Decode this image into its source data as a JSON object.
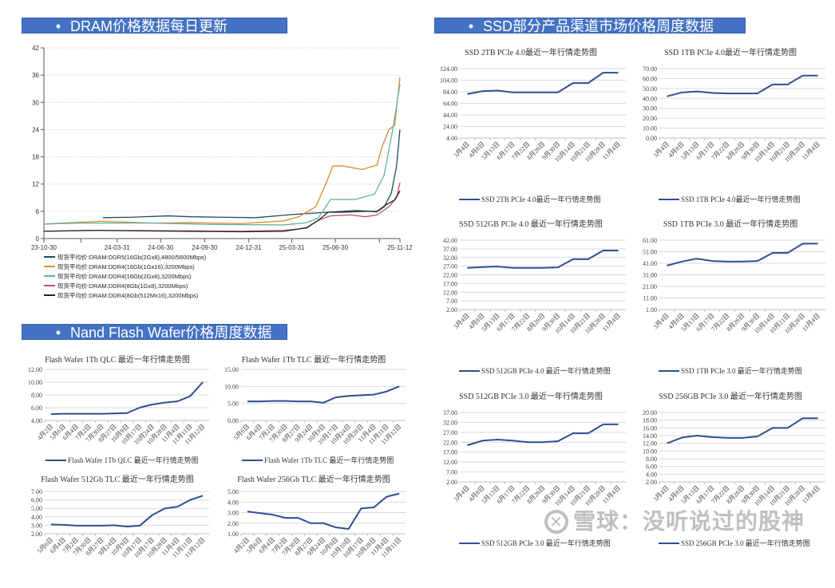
{
  "headers": {
    "dram": "DRAM价格数据每日更新",
    "ssd": "SSD部分产品渠道市场价格周度数据",
    "nand": "Nand Flash Wafer价格周度数据",
    "bullet": "•"
  },
  "watermark": {
    "logo": "✕",
    "text": "雪球：没听说过的股神"
  },
  "chart_data": [
    {
      "id": "dram",
      "type": "line",
      "title": "",
      "ylim": [
        0,
        42
      ],
      "yticks": [
        "0",
        "6",
        "12",
        "18",
        "24",
        "30",
        "36",
        "42"
      ],
      "xlim": [
        "2023-10-30",
        "2025-11-12"
      ],
      "xticks": [
        {
          "label": "23-10-30",
          "date": "2023-10-30"
        },
        {
          "label": "",
          "date": "2024-01-15"
        },
        {
          "label": "24-03-31",
          "date": "2024-03-31"
        },
        {
          "label": "24-06-30",
          "date": "2024-06-30"
        },
        {
          "label": "24-09-30",
          "date": "2024-09-30"
        },
        {
          "label": "24-12-31",
          "date": "2024-12-31"
        },
        {
          "label": "25-03-31",
          "date": "2025-03-31"
        },
        {
          "label": "25-06-30",
          "date": "2025-06-30"
        },
        {
          "label": "",
          "date": "2025-09-30"
        },
        {
          "label": "25-11-12",
          "date": "2025-11-12"
        }
      ],
      "grid": true,
      "legend": "bottom",
      "series": [
        {
          "name": "现货平均价:DRAM:DDR5(16Gb(2Gx8),4800/5600Mbps)",
          "color": "#1f4e5f",
          "points": [
            [
              "2024-03-01",
              4.6
            ],
            [
              "2024-05-01",
              4.7
            ],
            [
              "2024-07-15",
              5.0
            ],
            [
              "2024-09-01",
              4.8
            ],
            [
              "2024-11-01",
              4.7
            ],
            [
              "2025-01-15",
              4.6
            ],
            [
              "2025-04-01",
              5.3
            ],
            [
              "2025-06-15",
              5.8
            ],
            [
              "2025-07-15",
              6.0
            ],
            [
              "2025-08-10",
              6.2
            ],
            [
              "2025-09-25",
              5.9
            ],
            [
              "2025-10-10",
              7.0
            ],
            [
              "2025-10-25",
              10.0
            ],
            [
              "2025-11-05",
              16.0
            ],
            [
              "2025-11-12",
              24.0
            ]
          ]
        },
        {
          "name": "现货平均价:DRAM:DDR4(16Gb(1Gx16),3200Mbps)",
          "color": "#d98c2b",
          "points": [
            [
              "2023-10-30",
              3.2
            ],
            [
              "2024-01-15",
              3.6
            ],
            [
              "2024-03-01",
              3.8
            ],
            [
              "2024-06-15",
              3.4
            ],
            [
              "2024-09-01",
              3.5
            ],
            [
              "2024-12-15",
              3.3
            ],
            [
              "2025-03-15",
              3.9
            ],
            [
              "2025-04-15",
              4.8
            ],
            [
              "2025-05-20",
              7.0
            ],
            [
              "2025-06-10",
              12.0
            ],
            [
              "2025-06-25",
              16.0
            ],
            [
              "2025-07-15",
              16.0
            ],
            [
              "2025-08-25",
              15.2
            ],
            [
              "2025-09-25",
              16.2
            ],
            [
              "2025-10-05",
              20.0
            ],
            [
              "2025-10-20",
              24.0
            ],
            [
              "2025-11-01",
              25.0
            ],
            [
              "2025-11-12",
              35.5
            ]
          ]
        },
        {
          "name": "现货平均价:DRAM:DDR4(16Gb(2Gx8),3200Mbps)",
          "color": "#5fb3a6",
          "points": [
            [
              "2023-10-30",
              3.2
            ],
            [
              "2024-01-15",
              3.4
            ],
            [
              "2024-06-15",
              3.4
            ],
            [
              "2024-10-15",
              3.1
            ],
            [
              "2025-03-15",
              3.0
            ],
            [
              "2025-04-30",
              3.5
            ],
            [
              "2025-05-25",
              4.5
            ],
            [
              "2025-06-20",
              8.6
            ],
            [
              "2025-08-10",
              8.6
            ],
            [
              "2025-09-20",
              9.8
            ],
            [
              "2025-10-10",
              14.0
            ],
            [
              "2025-10-28",
              24.0
            ],
            [
              "2025-11-12",
              34.0
            ]
          ]
        },
        {
          "name": "现货平均价:DRAM:DDR4(8Gb(1Gx8),3200Mbps)",
          "color": "#c0506a",
          "points": [
            [
              "2023-10-30",
              1.6
            ],
            [
              "2024-03-01",
              1.8
            ],
            [
              "2024-12-15",
              1.6
            ],
            [
              "2025-03-15",
              1.8
            ],
            [
              "2025-05-01",
              2.3
            ],
            [
              "2025-05-25",
              4.0
            ],
            [
              "2025-06-20",
              5.0
            ],
            [
              "2025-08-01",
              5.2
            ],
            [
              "2025-09-01",
              4.8
            ],
            [
              "2025-09-25",
              5.2
            ],
            [
              "2025-10-20",
              7.0
            ],
            [
              "2025-11-05",
              9.0
            ],
            [
              "2025-11-12",
              12.3
            ]
          ]
        },
        {
          "name": "现货平均价:DRAM:DDR4(8Gb(512Mx16),3200Mbps)",
          "color": "#222222",
          "points": [
            [
              "2023-10-30",
              1.6
            ],
            [
              "2024-02-01",
              1.8
            ],
            [
              "2024-12-15",
              1.5
            ],
            [
              "2025-03-15",
              1.6
            ],
            [
              "2025-05-01",
              2.4
            ],
            [
              "2025-05-25",
              4.0
            ],
            [
              "2025-06-15",
              5.8
            ],
            [
              "2025-07-15",
              5.8
            ],
            [
              "2025-09-01",
              6.0
            ],
            [
              "2025-09-25",
              6.0
            ],
            [
              "2025-10-15",
              7.5
            ],
            [
              "2025-11-01",
              8.5
            ],
            [
              "2025-11-12",
              10.5
            ]
          ]
        }
      ]
    },
    {
      "id": "ssd1",
      "type": "line",
      "title": "SSD 2TB PCIe 4.0最近一年行情走势图",
      "legend_label": "SSD 2TB PCIe 4.0最近一年行情走势图",
      "color": "#2e4f94",
      "ylim": [
        4,
        124
      ],
      "yticks": [
        "4.00",
        "24.00",
        "44.00",
        "64.00",
        "84.00",
        "104.00",
        "124.00"
      ],
      "categories": [
        "3月4日",
        "4月8日",
        "5月13日",
        "6月17日",
        "7月22日",
        "8月26日",
        "9月30日",
        "10月14日",
        "10月21日",
        "10月28日",
        "11月4日"
      ],
      "values": [
        80,
        85,
        86,
        83,
        83,
        83,
        83,
        99,
        99,
        117,
        117
      ]
    },
    {
      "id": "ssd2",
      "type": "line",
      "title": "SSD 1TB PCIe 4.0最近一年行情走势图",
      "legend_label": "SSD 1TB PCIe 4.0最近一年行情走势图",
      "color": "#2e4f94",
      "ylim": [
        0,
        70
      ],
      "yticks": [
        "0.00",
        "10.00",
        "20.00",
        "30.00",
        "40.00",
        "50.00",
        "60.00",
        "70.00"
      ],
      "categories": [
        "3月4日",
        "4月8日",
        "5月13日",
        "6月17日",
        "7月22日",
        "8月26日",
        "9月30日",
        "10月14日",
        "10月21日",
        "10月28日",
        "11月4日"
      ],
      "values": [
        42,
        46,
        47,
        45.5,
        45,
        45,
        45,
        54,
        54,
        63,
        63
      ]
    },
    {
      "id": "ssd3",
      "type": "line",
      "title": "SSD 512GB PCIe 4.0 最近一年行情走势图",
      "legend_label": "SSD 512GB PCIe 4.0 最近一年行情走势图",
      "color": "#2e4f94",
      "ylim": [
        2,
        42
      ],
      "yticks": [
        "2.00",
        "7.00",
        "12.00",
        "17.00",
        "22.00",
        "27.00",
        "32.00",
        "37.00",
        "42.00"
      ],
      "categories": [
        "3月4日",
        "4月8日",
        "5月13日",
        "6月17日",
        "7月22日",
        "8月26日",
        "9月30日",
        "10月14日",
        "10月21日",
        "10月28日",
        "11月4日"
      ],
      "values": [
        26,
        26.5,
        26.8,
        26,
        26,
        26,
        26.3,
        31,
        31,
        36,
        36
      ]
    },
    {
      "id": "ssd4",
      "type": "line",
      "title": "SSD 1TB PCIe 3.0 最近一年行情走势图",
      "legend_label": "SSD 1TB PCIe 3.0 最近一年行情走势图",
      "color": "#2e4f94",
      "ylim": [
        1,
        61
      ],
      "yticks": [
        "1.00",
        "11.00",
        "21.00",
        "31.00",
        "41.00",
        "51.00",
        "61.00"
      ],
      "categories": [
        "3月4日",
        "4月8日",
        "5月13日",
        "6月17日",
        "7月22日",
        "8月26日",
        "9月30日",
        "10月14日",
        "10月21日",
        "10月28日",
        "11月4日"
      ],
      "values": [
        39,
        42.5,
        45,
        43,
        42.5,
        42.5,
        43,
        50,
        50,
        58,
        58
      ]
    },
    {
      "id": "ssd5",
      "type": "line",
      "title": "SSD 512GB PCIe 3.0 最近一年行情走势图",
      "legend_label": "SSD 512GB PCIe 3.0 最近一年行情走势图",
      "color": "#2e4f94",
      "ylim": [
        2,
        37
      ],
      "yticks": [
        "2.00",
        "7.00",
        "12.00",
        "17.00",
        "22.00",
        "27.00",
        "32.00",
        "37.00"
      ],
      "categories": [
        "3月4日",
        "4月8日",
        "5月13日",
        "6月17日",
        "7月22日",
        "8月26日",
        "9月30日",
        "10月14日",
        "10月21日",
        "10月28日",
        "11月4日"
      ],
      "values": [
        20.5,
        22.8,
        23.3,
        22.8,
        22,
        22,
        22.5,
        26.5,
        26.5,
        31,
        31
      ]
    },
    {
      "id": "ssd6",
      "type": "line",
      "title": "SSD 256GB PCIe 3.0 最近一年行情走势图",
      "legend_label": "SSD 256GB PCIe 3.0 最近一年行情走势图",
      "color": "#2e4f94",
      "ylim": [
        2,
        20
      ],
      "yticks": [
        "2.00",
        "4.00",
        "6.00",
        "8.00",
        "10.00",
        "12.00",
        "14.00",
        "16.00",
        "18.00",
        "20.00"
      ],
      "categories": [
        "3月4日",
        "4月8日",
        "5月13日",
        "6月17日",
        "7月22日",
        "8月26日",
        "9月30日",
        "10月14日",
        "10月21日",
        "10月28日",
        "11月4日"
      ],
      "values": [
        12,
        13.5,
        14,
        13.6,
        13.4,
        13.4,
        13.8,
        16,
        16,
        18.5,
        18.5
      ]
    },
    {
      "id": "nand1",
      "type": "line",
      "title": "Flash Wafer 1Tb QLC 最近一年行情走势图",
      "legend_label": "Flash Wafer 1Tb QLC 最近一年行情走势图",
      "color": "#2e4f94",
      "ylim": [
        4,
        12
      ],
      "yticks": [
        "4.00",
        "6.00",
        "8.00",
        "10.00",
        "12.00"
      ],
      "categories": [
        "4月2日",
        "5月6日",
        "6月4日",
        "7月2日",
        "7月30日",
        "8月27日",
        "10月9日",
        "10月17日",
        "10月24日",
        "10月28日",
        "11月4日",
        "11月11日",
        "11月12日"
      ],
      "values": [
        5,
        5.05,
        5.05,
        5.05,
        5.05,
        5.1,
        5.15,
        6,
        6.5,
        6.8,
        7,
        7.8,
        10
      ]
    },
    {
      "id": "nand2",
      "type": "line",
      "title": "Flash Wafer 1Tb TLC 最近一年行情走势图",
      "legend_label": "Flash Wafer 1Tb TLC 最近一年行情走势图",
      "color": "#2e4f94",
      "ylim": [
        0,
        15
      ],
      "yticks": [
        "0.00",
        "5.00",
        "10.00",
        "15.00"
      ],
      "categories": [
        "5月6日",
        "6月4日",
        "7月2日",
        "7月30日",
        "8月27日",
        "9月24日",
        "10月9日",
        "10月17日",
        "10月24日",
        "10月28日",
        "11月4日",
        "11月11日",
        "11月12日"
      ],
      "values": [
        5.6,
        5.6,
        5.7,
        5.7,
        5.6,
        5.6,
        5.2,
        6.8,
        7.2,
        7.4,
        7.6,
        8.5,
        10
      ]
    },
    {
      "id": "nand3",
      "type": "line",
      "title": "Flash Wafer 512Gb TLC 最近一年行情走势图",
      "legend_label": "",
      "color": "#2e4f94",
      "ylim": [
        2,
        7
      ],
      "yticks": [
        "2.00",
        "3.00",
        "4.00",
        "5.00",
        "6.00",
        "7.00"
      ],
      "categories": [
        "5月6日",
        "6月4日",
        "7月2日",
        "7月30日",
        "8月27日",
        "9月24日",
        "10月9日",
        "10月17日",
        "10月17日",
        "10月28日",
        "11月4日",
        "11月11日",
        "11月12日"
      ],
      "values": [
        3.1,
        3.05,
        2.95,
        2.95,
        2.95,
        3.0,
        2.85,
        2.95,
        4.2,
        5.0,
        5.2,
        6.0,
        6.5
      ]
    },
    {
      "id": "nand4",
      "type": "line",
      "title": "Flash Wafer 256Gb TLC 最近一年行情走势图",
      "legend_label": "",
      "color": "#2e4f94",
      "ylim": [
        1,
        5
      ],
      "yticks": [
        "1.00",
        "2.00",
        "3.00",
        "4.00",
        "5.00"
      ],
      "categories": [
        "4月2日",
        "5月6日",
        "6月4日",
        "7月2日",
        "7月30日",
        "8月27日",
        "9月24日",
        "10月9日",
        "10月10日",
        "10月17日",
        "10月28日",
        "11月4日",
        "11月11日"
      ],
      "values": [
        3.1,
        2.95,
        2.8,
        2.5,
        2.5,
        2.0,
        2.0,
        1.6,
        1.45,
        3.4,
        3.5,
        4.5,
        4.8
      ]
    }
  ]
}
